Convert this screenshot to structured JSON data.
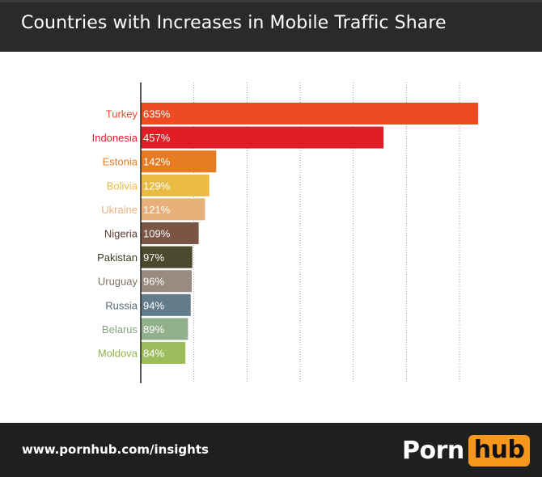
{
  "header": {
    "title": "Countries with Increases in Mobile Traffic Share"
  },
  "footer": {
    "url": "www.pornhub.com/insights",
    "logo_part1": "Porn",
    "logo_part2": "hub"
  },
  "colors": {
    "header_bg": "#2a2a2a",
    "footer_bg": "#1f1f1f",
    "logo_accent": "#f7971c"
  },
  "chart_data": {
    "type": "bar",
    "orientation": "horizontal",
    "title": "Countries with Increases in Mobile Traffic Share",
    "xlabel": "",
    "ylabel": "",
    "xlim": [
      0,
      650
    ],
    "grid": true,
    "categories": [
      "Turkey",
      "Indonesia",
      "Estonia",
      "Bolivia",
      "Ukraine",
      "Nigeria",
      "Pakistan",
      "Uruguay",
      "Russia",
      "Belarus",
      "Moldova"
    ],
    "values": [
      635,
      457,
      142,
      129,
      121,
      109,
      97,
      96,
      94,
      89,
      84
    ],
    "value_labels": [
      "635%",
      "457%",
      "142%",
      "129%",
      "121%",
      "109%",
      "97%",
      "96%",
      "94%",
      "89%",
      "84%"
    ],
    "bar_colors": [
      "#ef4b23",
      "#e11d27",
      "#e67b22",
      "#e9bb43",
      "#e7b07a",
      "#7a5544",
      "#4b4a2e",
      "#978c7f",
      "#637c8a",
      "#93b08d",
      "#9dbc5c"
    ],
    "label_colors": [
      "#ef4b23",
      "#e11d27",
      "#e67b22",
      "#e9bb43",
      "#e7b07a",
      "#5a4034",
      "#3d3c26",
      "#7b7165",
      "#546a76",
      "#86a681",
      "#8eb04f"
    ]
  }
}
